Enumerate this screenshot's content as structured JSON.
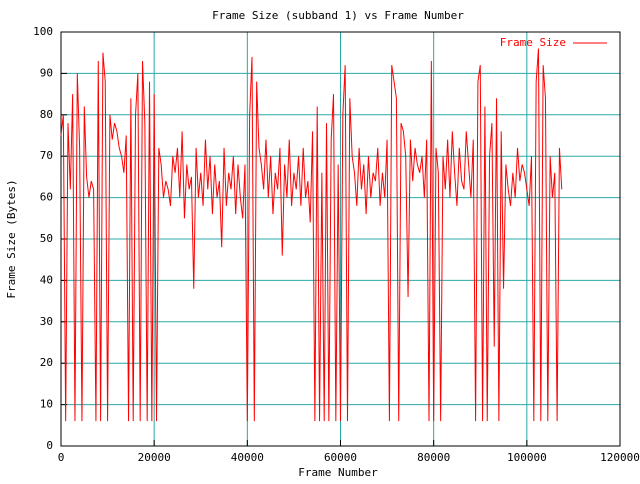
{
  "chart_data": {
    "type": "line",
    "title": "Frame Size (subband 1) vs Frame Number",
    "x_label": "Frame Number",
    "y_label": "Frame Size (Bytes)",
    "xlim": [
      0,
      120000
    ],
    "xticks": [
      0,
      20000,
      40000,
      60000,
      80000,
      100000,
      120000
    ],
    "ylim": [
      0,
      100
    ],
    "yticks": [
      0,
      10,
      20,
      30,
      40,
      50,
      60,
      70,
      80,
      90,
      100
    ],
    "grid": true,
    "legend": "upper right",
    "x": [
      0,
      500,
      1000,
      1500,
      2000,
      2500,
      3000,
      3500,
      4000,
      4500,
      5000,
      5500,
      6000,
      6500,
      7000,
      7500,
      8000,
      8500,
      9000,
      9500,
      10000,
      10500,
      11000,
      11500,
      12000,
      12500,
      13000,
      13500,
      14000,
      14500,
      15000,
      15500,
      16000,
      16500,
      17000,
      17500,
      18000,
      18500,
      19000,
      19500,
      20000,
      20500,
      21000,
      21500,
      22000,
      22500,
      23000,
      23500,
      24000,
      24500,
      25000,
      25500,
      26000,
      26500,
      27000,
      27500,
      28000,
      28500,
      29000,
      29500,
      30000,
      30500,
      31000,
      31500,
      32000,
      32500,
      33000,
      33500,
      34000,
      34500,
      35000,
      35500,
      36000,
      36500,
      37000,
      37500,
      38000,
      38500,
      39000,
      39500,
      40000,
      40500,
      41000,
      41500,
      42000,
      42500,
      43000,
      43500,
      44000,
      44500,
      45000,
      45500,
      46000,
      46500,
      47000,
      47500,
      48000,
      48500,
      49000,
      49500,
      50000,
      50500,
      51000,
      51500,
      52000,
      52500,
      53000,
      53500,
      54000,
      54500,
      55000,
      55500,
      56000,
      56500,
      57000,
      57500,
      58000,
      58500,
      59000,
      59500,
      60000,
      60500,
      61000,
      61500,
      62000,
      62500,
      63000,
      63500,
      64000,
      64500,
      65000,
      65500,
      66000,
      66500,
      67000,
      67500,
      68000,
      68500,
      69000,
      69500,
      70000,
      70500,
      71000,
      71500,
      72000,
      72500,
      73000,
      73500,
      74000,
      74500,
      75000,
      75500,
      76000,
      76500,
      77000,
      77500,
      78000,
      78500,
      79000,
      79500,
      80000,
      80500,
      81000,
      81500,
      82000,
      82500,
      83000,
      83500,
      84000,
      84500,
      85000,
      85500,
      86000,
      86500,
      87000,
      87500,
      88000,
      88500,
      89000,
      89500,
      90000,
      90500,
      91000,
      91500,
      92000,
      92500,
      93000,
      93500,
      94000,
      94500,
      95000,
      95500,
      96000,
      96500,
      97000,
      97500,
      98000,
      98500,
      99000,
      99500,
      100000,
      100500,
      101000,
      101500,
      102000,
      102500,
      103000,
      103500,
      104000,
      104500,
      105000,
      105500,
      106000,
      106500,
      107000,
      107500
    ],
    "series": [
      {
        "name": "Frame Size",
        "color": "#ff0000",
        "values": [
          75,
          80,
          6,
          78,
          62,
          85,
          6,
          90,
          72,
          6,
          82,
          65,
          60,
          64,
          62,
          6,
          93,
          6,
          95,
          88,
          6,
          80,
          74,
          78,
          76,
          72,
          70,
          66,
          75,
          6,
          84,
          6,
          80,
          90,
          6,
          93,
          78,
          6,
          88,
          6,
          85,
          6,
          72,
          68,
          60,
          64,
          62,
          58,
          70,
          66,
          72,
          60,
          76,
          55,
          68,
          62,
          65,
          38,
          72,
          60,
          66,
          58,
          74,
          62,
          70,
          56,
          68,
          60,
          64,
          48,
          72,
          58,
          66,
          62,
          70,
          56,
          68,
          60,
          55,
          68,
          6,
          80,
          94,
          6,
          88,
          72,
          68,
          62,
          74,
          60,
          70,
          56,
          66,
          62,
          72,
          46,
          68,
          60,
          74,
          58,
          66,
          62,
          70,
          58,
          72,
          60,
          64,
          54,
          76,
          6,
          82,
          6,
          66,
          6,
          78,
          6,
          74,
          85,
          6,
          68,
          6,
          80,
          92,
          6,
          84,
          70,
          66,
          58,
          72,
          62,
          68,
          56,
          70,
          60,
          66,
          64,
          72,
          58,
          66,
          60,
          74,
          6,
          92,
          88,
          84,
          6,
          78,
          76,
          70,
          36,
          74,
          64,
          72,
          68,
          66,
          70,
          60,
          74,
          6,
          93,
          6,
          72,
          66,
          6,
          70,
          62,
          74,
          60,
          76,
          66,
          58,
          72,
          64,
          62,
          76,
          68,
          60,
          74,
          6,
          88,
          92,
          6,
          82,
          6,
          70,
          78,
          24,
          84,
          6,
          76,
          38,
          68,
          62,
          58,
          66,
          60,
          72,
          64,
          68,
          66,
          62,
          58,
          70,
          6,
          88,
          96,
          6,
          92,
          84,
          6,
          70,
          60,
          66,
          6,
          72,
          62
        ]
      }
    ]
  }
}
